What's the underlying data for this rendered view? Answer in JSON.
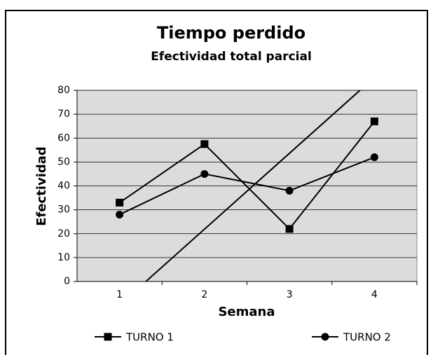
{
  "chart_data": {
    "type": "line",
    "title": "Tiempo perdido",
    "subtitle": "Efectividad total parcial",
    "x_label": "Semana",
    "y_label": "Efectividad",
    "categories": [
      "1",
      "2",
      "3",
      "4"
    ],
    "series": [
      {
        "name": "TURNO 1",
        "color": "#000000",
        "marker": "square",
        "values": [
          33,
          57.5,
          22,
          67
        ]
      },
      {
        "name": "TURNO 2",
        "color": "#000000",
        "marker": "circle",
        "values": [
          28,
          45,
          38,
          52
        ]
      }
    ],
    "trendline": {
      "x": [
        1.31,
        3.83
      ],
      "values": [
        0,
        80
      ],
      "color": "#000000"
    },
    "ylim": [
      0,
      80
    ],
    "yticks": [
      0,
      10,
      20,
      30,
      40,
      50,
      60,
      70,
      80
    ],
    "grid": true,
    "plot_background": "#dcdcdc"
  }
}
